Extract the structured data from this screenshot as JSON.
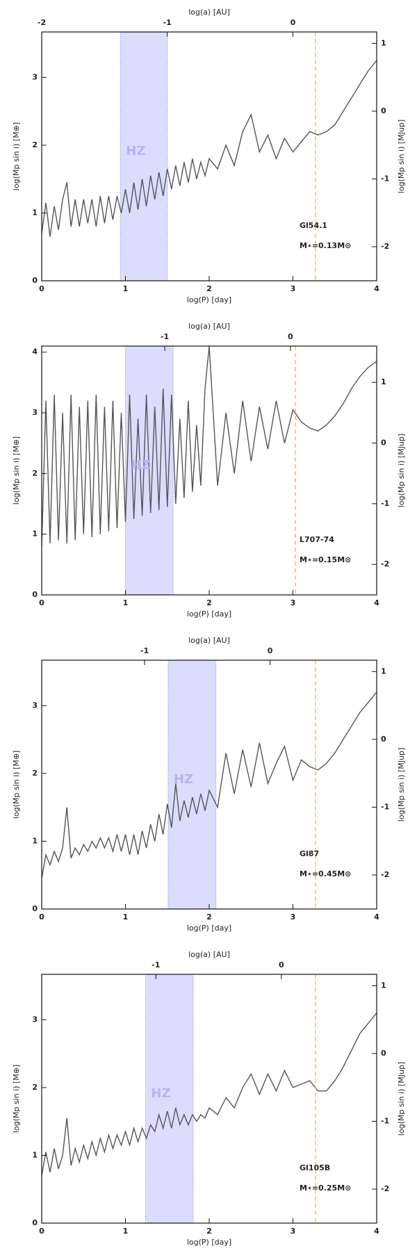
{
  "chart_data": [
    {
      "type": "line",
      "xlabel": "log(P) [day]",
      "ylabel": "log(Mp sin i) [M⊕]",
      "x2label": "log(a) [AU]",
      "y2label": "log(Mp sin i) [MJup]",
      "xlim": [
        0,
        4
      ],
      "xticks": [
        0,
        1,
        2,
        3,
        4
      ],
      "ylim": [
        0,
        3.67
      ],
      "yticks": [
        0,
        1,
        2,
        3
      ],
      "x2lim": [
        -2,
        0.667
      ],
      "x2ticks": [
        -2,
        -1,
        0
      ],
      "y2lim": [
        -2.502,
        1.168
      ],
      "y2ticks": [
        -2,
        -1,
        0,
        1
      ],
      "hz": [
        0.94,
        1.5
      ],
      "hz_label": "HZ",
      "vline_x": 3.27,
      "star": "Gl54.1",
      "mass_label": "M⋆=0.13M⊙",
      "series": [
        {
          "color": "#555555",
          "x": [
            0,
            0.05,
            0.1,
            0.15,
            0.2,
            0.25,
            0.3,
            0.35,
            0.4,
            0.45,
            0.5,
            0.55,
            0.6,
            0.65,
            0.7,
            0.75,
            0.8,
            0.85,
            0.9,
            0.95,
            1.0,
            1.05,
            1.1,
            1.15,
            1.2,
            1.25,
            1.3,
            1.35,
            1.4,
            1.45,
            1.5,
            1.55,
            1.6,
            1.65,
            1.7,
            1.75,
            1.8,
            1.85,
            1.9,
            1.95,
            2.0,
            2.1,
            2.2,
            2.3,
            2.4,
            2.5,
            2.6,
            2.7,
            2.8,
            2.9,
            3.0,
            3.1,
            3.2,
            3.3,
            3.4,
            3.5,
            3.6,
            3.7,
            3.8,
            3.9,
            4.0
          ],
          "values": [
            0.7,
            1.15,
            0.65,
            1.1,
            0.75,
            1.2,
            1.45,
            0.8,
            1.2,
            0.8,
            1.2,
            0.85,
            1.2,
            0.8,
            1.25,
            0.85,
            1.25,
            0.9,
            1.25,
            1.0,
            1.35,
            1.0,
            1.45,
            1.05,
            1.5,
            1.1,
            1.55,
            1.2,
            1.6,
            1.25,
            1.65,
            1.35,
            1.7,
            1.4,
            1.75,
            1.45,
            1.8,
            1.5,
            1.75,
            1.55,
            1.8,
            1.65,
            2.0,
            1.7,
            2.2,
            2.45,
            1.9,
            2.15,
            1.8,
            2.1,
            1.9,
            2.05,
            2.2,
            2.15,
            2.2,
            2.3,
            2.5,
            2.7,
            2.9,
            3.1,
            3.25
          ]
        }
      ]
    },
    {
      "type": "line",
      "xlabel": "log(P) [day]",
      "ylabel": "log(Mp sin i) [M⊕]",
      "x2label": "log(a) [AU]",
      "y2label": "log(Mp sin i) [MJup]",
      "xlim": [
        0,
        4
      ],
      "xticks": [
        0,
        1,
        2,
        3,
        4
      ],
      "ylim": [
        0,
        4.1
      ],
      "yticks": [
        0,
        1,
        2,
        3,
        4
      ],
      "x2lim": [
        -1.98,
        0.687
      ],
      "x2ticks": [
        -1,
        0
      ],
      "y2lim": [
        -2.502,
        1.598
      ],
      "y2ticks": [
        -2,
        -1,
        0,
        1
      ],
      "hz": [
        1.0,
        1.57
      ],
      "hz_label": "HZ",
      "vline_x": 3.03,
      "star": "L707-74",
      "mass_label": "M⋆=0.15M⊙",
      "series": [
        {
          "color": "#555555",
          "x": [
            0,
            0.05,
            0.1,
            0.15,
            0.2,
            0.25,
            0.3,
            0.35,
            0.4,
            0.45,
            0.5,
            0.55,
            0.6,
            0.65,
            0.7,
            0.75,
            0.8,
            0.85,
            0.9,
            0.95,
            1.0,
            1.05,
            1.1,
            1.15,
            1.2,
            1.25,
            1.3,
            1.35,
            1.4,
            1.45,
            1.5,
            1.55,
            1.6,
            1.65,
            1.7,
            1.75,
            1.8,
            1.85,
            1.9,
            1.95,
            2.0,
            2.1,
            2.2,
            2.3,
            2.4,
            2.5,
            2.6,
            2.7,
            2.8,
            2.9,
            3.0,
            3.1,
            3.2,
            3.3,
            3.4,
            3.5,
            3.6,
            3.7,
            3.8,
            3.9,
            4.0
          ],
          "values": [
            0.8,
            3.2,
            0.85,
            3.3,
            0.9,
            3.0,
            0.85,
            3.3,
            0.9,
            3.1,
            1.0,
            3.2,
            0.95,
            3.3,
            1.0,
            3.1,
            1.05,
            3.2,
            1.1,
            3.0,
            1.2,
            3.3,
            1.25,
            2.9,
            1.3,
            3.3,
            1.35,
            3.1,
            1.4,
            3.4,
            1.45,
            3.3,
            1.5,
            2.9,
            1.6,
            3.2,
            1.7,
            2.8,
            1.8,
            3.4,
            4.1,
            1.8,
            3.0,
            2.0,
            3.2,
            2.2,
            3.1,
            2.4,
            3.2,
            2.5,
            3.05,
            2.85,
            2.75,
            2.7,
            2.8,
            2.95,
            3.15,
            3.4,
            3.6,
            3.75,
            3.85
          ]
        }
      ]
    },
    {
      "type": "line",
      "xlabel": "log(P) [day]",
      "ylabel": "log(Mp sin i) [M⊕]",
      "x2label": "log(a) [AU]",
      "y2label": "log(Mp sin i) [MJup]",
      "xlim": [
        0,
        4
      ],
      "xticks": [
        0,
        1,
        2,
        3,
        4
      ],
      "ylim": [
        0,
        3.67
      ],
      "yticks": [
        0,
        1,
        2,
        3
      ],
      "x2lim": [
        -1.82,
        0.85
      ],
      "x2ticks": [
        -1,
        0
      ],
      "y2lim": [
        -2.502,
        1.168
      ],
      "y2ticks": [
        -2,
        -1,
        0,
        1
      ],
      "hz": [
        1.51,
        2.08
      ],
      "hz_label": "HZ",
      "vline_x": 3.27,
      "star": "Gl87",
      "mass_label": "M⋆=0.45M⊙",
      "series": [
        {
          "color": "#555555",
          "x": [
            0,
            0.05,
            0.1,
            0.15,
            0.2,
            0.25,
            0.3,
            0.35,
            0.4,
            0.45,
            0.5,
            0.55,
            0.6,
            0.65,
            0.7,
            0.75,
            0.8,
            0.85,
            0.9,
            0.95,
            1.0,
            1.05,
            1.1,
            1.15,
            1.2,
            1.25,
            1.3,
            1.35,
            1.4,
            1.45,
            1.5,
            1.55,
            1.6,
            1.65,
            1.7,
            1.75,
            1.8,
            1.85,
            1.9,
            1.95,
            2.0,
            2.1,
            2.2,
            2.3,
            2.4,
            2.5,
            2.6,
            2.7,
            2.8,
            2.9,
            3.0,
            3.1,
            3.2,
            3.3,
            3.4,
            3.5,
            3.6,
            3.7,
            3.8,
            3.9,
            4.0
          ],
          "values": [
            0.45,
            0.8,
            0.65,
            0.85,
            0.7,
            0.9,
            1.5,
            0.75,
            0.9,
            0.8,
            0.95,
            0.85,
            1.0,
            0.9,
            1.05,
            0.9,
            1.05,
            0.85,
            1.1,
            0.85,
            1.1,
            0.8,
            1.1,
            0.8,
            1.15,
            0.9,
            1.25,
            1.0,
            1.4,
            1.1,
            1.55,
            1.2,
            1.85,
            1.3,
            1.6,
            1.35,
            1.65,
            1.4,
            1.7,
            1.45,
            1.75,
            1.5,
            2.3,
            1.7,
            2.35,
            1.8,
            2.45,
            1.85,
            2.15,
            2.4,
            1.9,
            2.2,
            2.1,
            2.05,
            2.15,
            2.3,
            2.5,
            2.7,
            2.9,
            3.05,
            3.2
          ]
        }
      ]
    },
    {
      "type": "line",
      "xlabel": "log(P) [day]",
      "ylabel": "log(Mp sin i) [M⊕]",
      "x2label": "log(a) [AU]",
      "y2label": "log(Mp sin i) [MJup]",
      "xlim": [
        0,
        4
      ],
      "xticks": [
        0,
        1,
        2,
        3,
        4
      ],
      "ylim": [
        0,
        3.67
      ],
      "yticks": [
        0,
        1,
        2,
        3
      ],
      "x2lim": [
        -1.91,
        0.76
      ],
      "x2ticks": [
        -1,
        0
      ],
      "y2lim": [
        -2.502,
        1.168
      ],
      "y2ticks": [
        -2,
        -1,
        0,
        1
      ],
      "hz": [
        1.24,
        1.81
      ],
      "hz_label": "HZ",
      "vline_x": 3.27,
      "star": "Gl105B",
      "mass_label": "M⋆=0.25M⊙",
      "series": [
        {
          "color": "#555555",
          "x": [
            0,
            0.05,
            0.1,
            0.15,
            0.2,
            0.25,
            0.3,
            0.35,
            0.4,
            0.45,
            0.5,
            0.55,
            0.6,
            0.65,
            0.7,
            0.75,
            0.8,
            0.85,
            0.9,
            0.95,
            1.0,
            1.05,
            1.1,
            1.15,
            1.2,
            1.25,
            1.3,
            1.35,
            1.4,
            1.45,
            1.5,
            1.55,
            1.6,
            1.65,
            1.7,
            1.75,
            1.8,
            1.85,
            1.9,
            1.95,
            2.0,
            2.1,
            2.2,
            2.3,
            2.4,
            2.5,
            2.6,
            2.7,
            2.8,
            2.9,
            3.0,
            3.1,
            3.2,
            3.3,
            3.4,
            3.5,
            3.6,
            3.7,
            3.8,
            3.9,
            4.0
          ],
          "values": [
            0.7,
            1.05,
            0.75,
            1.1,
            0.8,
            1.0,
            1.55,
            0.85,
            1.1,
            0.9,
            1.15,
            0.95,
            1.2,
            1.0,
            1.25,
            1.05,
            1.3,
            1.1,
            1.3,
            1.15,
            1.35,
            1.15,
            1.4,
            1.2,
            1.4,
            1.25,
            1.45,
            1.35,
            1.6,
            1.4,
            1.65,
            1.4,
            1.7,
            1.45,
            1.6,
            1.45,
            1.6,
            1.5,
            1.6,
            1.55,
            1.7,
            1.6,
            1.85,
            1.7,
            2.0,
            2.2,
            1.9,
            2.2,
            1.95,
            2.25,
            2.0,
            2.05,
            2.1,
            1.95,
            1.95,
            2.1,
            2.3,
            2.55,
            2.8,
            2.95,
            3.1
          ]
        }
      ]
    }
  ]
}
